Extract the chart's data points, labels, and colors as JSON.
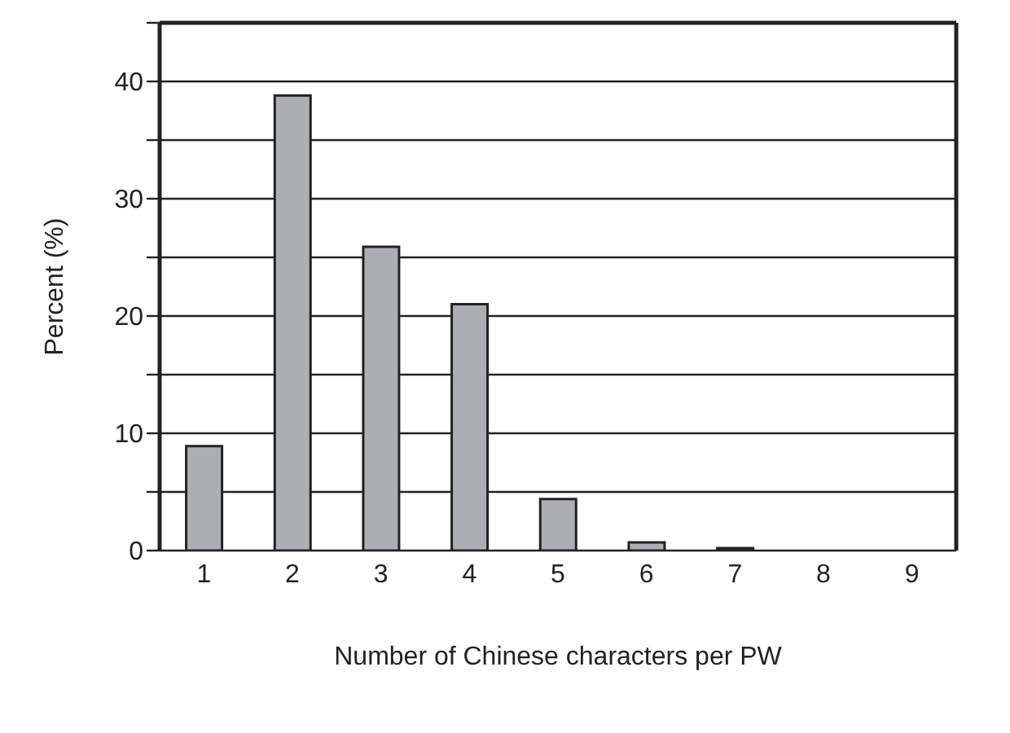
{
  "chart_data": {
    "type": "bar",
    "xlabel": "Number of Chinese characters per PW",
    "ylabel": "Percent (%)",
    "categories": [
      "1",
      "2",
      "3",
      "4",
      "5",
      "6",
      "7",
      "8",
      "9"
    ],
    "values": [
      8.9,
      38.8,
      25.9,
      21.0,
      4.4,
      0.7,
      0.2,
      0,
      0
    ],
    "color": "#adaeb1",
    "ylim": [
      0,
      45
    ],
    "yticks": [
      0,
      {
        "value": 5,
        "label": null
      },
      10,
      {
        "value": 15,
        "label": null
      },
      20,
      {
        "value": 25,
        "label": null
      },
      30,
      {
        "value": 35,
        "label": null
      },
      40,
      {
        "value": 45,
        "label": null
      }
    ],
    "grid": "y"
  }
}
